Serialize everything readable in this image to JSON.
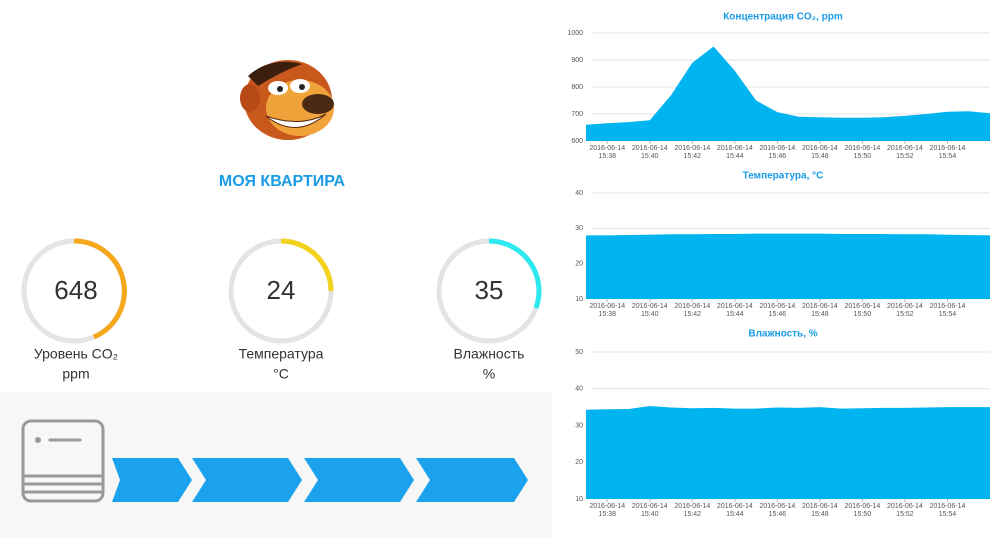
{
  "header": {
    "title": "МОЯ КВАРТИРА"
  },
  "gauges": [
    {
      "value": 648,
      "label": "Уровень CO₂",
      "unit": "ppm"
    },
    {
      "value": 24,
      "label": "Температура",
      "unit": "°C"
    },
    {
      "value": 35,
      "label": "Влажность",
      "unit": "%"
    }
  ],
  "chart_data": [
    {
      "type": "area",
      "title": "Концентрация CO₂, ppm",
      "color": "#00b4f0",
      "grid": true,
      "x": [
        "2016-06-14 15:37",
        "2016-06-14 15:38",
        "2016-06-14 15:39",
        "2016-06-14 15:40",
        "2016-06-14 15:41",
        "2016-06-14 15:42",
        "2016-06-14 15:43",
        "2016-06-14 15:44",
        "2016-06-14 15:45",
        "2016-06-14 15:46",
        "2016-06-14 15:47",
        "2016-06-14 15:48",
        "2016-06-14 15:49",
        "2016-06-14 15:50",
        "2016-06-14 15:51",
        "2016-06-14 15:52",
        "2016-06-14 15:53",
        "2016-06-14 15:54",
        "2016-06-14 15:55",
        "2016-06-14 15:56"
      ],
      "values": [
        660,
        666,
        670,
        677,
        770,
        890,
        950,
        860,
        750,
        707,
        690,
        688,
        686,
        686,
        688,
        693,
        700,
        708,
        710,
        703
      ],
      "xlim": [
        "2016-06-14 15:37",
        "2016-06-14 15:56"
      ],
      "xticks": [
        "2016-06-14 15:38",
        "2016-06-14 15:40",
        "2016-06-14 15:42",
        "2016-06-14 15:44",
        "2016-06-14 15:46",
        "2016-06-14 15:48",
        "2016-06-14 15:50",
        "2016-06-14 15:52",
        "2016-06-14 15:54"
      ],
      "ylim": [
        600,
        1000
      ],
      "yticks": [
        600,
        700,
        800,
        900,
        1000
      ]
    },
    {
      "type": "area",
      "title": "Температура, °C",
      "color": "#00b4f0",
      "grid": true,
      "x": [
        "2016-06-14 15:37",
        "2016-06-14 15:38",
        "2016-06-14 15:39",
        "2016-06-14 15:40",
        "2016-06-14 15:41",
        "2016-06-14 15:42",
        "2016-06-14 15:43",
        "2016-06-14 15:44",
        "2016-06-14 15:45",
        "2016-06-14 15:46",
        "2016-06-14 15:47",
        "2016-06-14 15:48",
        "2016-06-14 15:49",
        "2016-06-14 15:50",
        "2016-06-14 15:51",
        "2016-06-14 15:52",
        "2016-06-14 15:53",
        "2016-06-14 15:54",
        "2016-06-14 15:55",
        "2016-06-14 15:56"
      ],
      "values": [
        28.0,
        28.0,
        28.1,
        28.2,
        28.3,
        28.3,
        28.4,
        28.4,
        28.5,
        28.5,
        28.5,
        28.5,
        28.4,
        28.4,
        28.4,
        28.3,
        28.3,
        28.2,
        28.1,
        28.0
      ],
      "xlim": [
        "2016-06-14 15:37",
        "2016-06-14 15:56"
      ],
      "xticks": [
        "2016-06-14 15:38",
        "2016-06-14 15:40",
        "2016-06-14 15:42",
        "2016-06-14 15:44",
        "2016-06-14 15:46",
        "2016-06-14 15:48",
        "2016-06-14 15:50",
        "2016-06-14 15:52",
        "2016-06-14 15:54"
      ],
      "ylim": [
        10,
        40
      ],
      "yticks": [
        10,
        20,
        30,
        40
      ]
    },
    {
      "type": "area",
      "title": "Влажность, %",
      "color": "#00b4f0",
      "grid": true,
      "x": [
        "2016-06-14 15:37",
        "2016-06-14 15:38",
        "2016-06-14 15:39",
        "2016-06-14 15:40",
        "2016-06-14 15:41",
        "2016-06-14 15:42",
        "2016-06-14 15:43",
        "2016-06-14 15:44",
        "2016-06-14 15:45",
        "2016-06-14 15:46",
        "2016-06-14 15:47",
        "2016-06-14 15:48",
        "2016-06-14 15:49",
        "2016-06-14 15:50",
        "2016-06-14 15:51",
        "2016-06-14 15:52",
        "2016-06-14 15:53",
        "2016-06-14 15:54",
        "2016-06-14 15:55",
        "2016-06-14 15:56"
      ],
      "values": [
        34.3,
        34.4,
        34.5,
        35.3,
        34.9,
        34.7,
        34.8,
        34.6,
        34.6,
        34.9,
        34.8,
        35.0,
        34.6,
        34.7,
        34.8,
        34.8,
        34.9,
        35.0,
        35.0,
        35.0
      ],
      "xlim": [
        "2016-06-14 15:37",
        "2016-06-14 15:56"
      ],
      "xticks": [
        "2016-06-14 15:38",
        "2016-06-14 15:40",
        "2016-06-14 15:42",
        "2016-06-14 15:44",
        "2016-06-14 15:46",
        "2016-06-14 15:48",
        "2016-06-14 15:50",
        "2016-06-14 15:52",
        "2016-06-14 15:54"
      ],
      "ylim": [
        10,
        50
      ],
      "yticks": [
        10,
        20,
        30,
        40,
        50
      ]
    }
  ]
}
